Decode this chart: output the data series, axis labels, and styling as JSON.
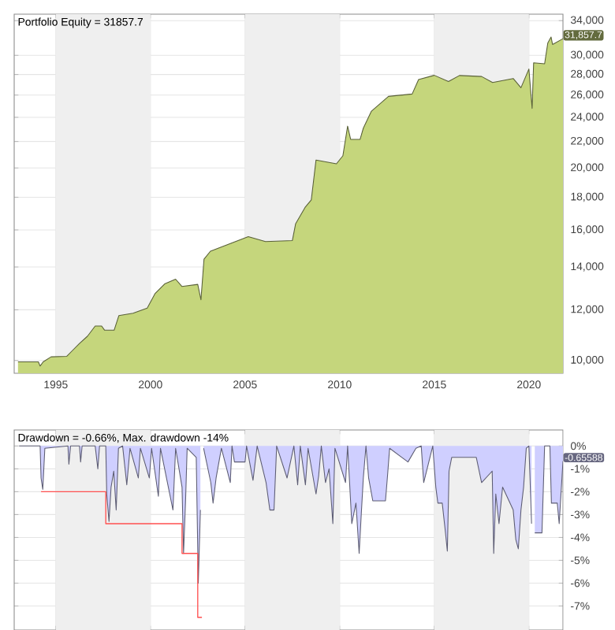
{
  "chart_data": [
    {
      "type": "area",
      "title": "Portfolio Equity = 31857.7",
      "x": [
        1993.0,
        1994.08,
        1994.17,
        1994.33,
        1994.75,
        1995.58,
        1995.83,
        1996.25,
        1996.67,
        1997.08,
        1997.42,
        1997.58,
        1998.08,
        1998.33,
        1999.08,
        1999.83,
        2000.25,
        2000.75,
        2001.33,
        2001.67,
        2002.5,
        2002.67,
        2002.83,
        2003.17,
        2004.25,
        2005.17,
        2006.08,
        2007.5,
        2007.67,
        2008.17,
        2008.5,
        2008.75,
        2009.83,
        2010.17,
        2010.42,
        2010.58,
        2011.08,
        2011.25,
        2011.67,
        2012.58,
        2013.83,
        2014.17,
        2015.0,
        2015.75,
        2016.33,
        2017.5,
        2018.08,
        2019.17,
        2019.58,
        2020.0,
        2020.17,
        2020.25,
        2020.83,
        2021.0,
        2021.17,
        2021.25,
        2021.8
      ],
      "series": [
        {
          "color": "#c5d67c",
          "values": [
            9950,
            9950,
            9800,
            9950,
            10130,
            10150,
            10330,
            10630,
            10910,
            11320,
            11320,
            11150,
            11150,
            11750,
            11850,
            12070,
            12730,
            13170,
            13400,
            13050,
            13150,
            12440,
            14400,
            14820,
            15250,
            15620,
            15340,
            15400,
            16350,
            17350,
            17830,
            20580,
            20300,
            20900,
            23250,
            22170,
            22170,
            23080,
            24520,
            25880,
            26100,
            27490,
            27920,
            27300,
            27900,
            27800,
            27200,
            27600,
            26700,
            28560,
            24780,
            29200,
            29100,
            31380,
            32050,
            31200,
            31857.7
          ]
        }
      ],
      "xlim": [
        1992.8,
        2021.8
      ],
      "ylim": [
        9550,
        34800
      ],
      "xticks": [
        1995,
        2000,
        2005,
        2010,
        2015,
        2020
      ],
      "yticks": [
        {
          "value": 10000,
          "label": "10,000"
        },
        {
          "value": 12000,
          "label": "12,000"
        },
        {
          "value": 14000,
          "label": "14,000"
        },
        {
          "value": 16000,
          "label": "16,000"
        },
        {
          "value": 18000,
          "label": "18,000"
        },
        {
          "value": 20000,
          "label": "20,000"
        },
        {
          "value": 22000,
          "label": "22,000"
        },
        {
          "value": 24000,
          "label": "24,000"
        },
        {
          "value": 26000,
          "label": "26,000"
        },
        {
          "value": 28000,
          "label": "28,000"
        },
        {
          "value": 30000,
          "label": "30,000"
        },
        {
          "value": 34000,
          "label": "34,000"
        }
      ],
      "log": true,
      "grid": true,
      "bands": [
        {
          "axis": "x",
          "from": 1995,
          "to": 2000,
          "color": "#efefef"
        },
        {
          "axis": "x",
          "from": 2005,
          "to": 2010,
          "color": "#efefef"
        },
        {
          "axis": "x",
          "from": 2015,
          "to": 2020,
          "color": "#efefef"
        }
      ],
      "annotations": [
        {
          "text": "31,857.7",
          "x": 2021.8,
          "y": 31857.7
        }
      ]
    },
    {
      "type": "area",
      "title": "Drawdown = -0.66%, Max. drawdown -14%",
      "series": [
        {
          "color": "#cfcfff",
          "x": [
            1993.06,
            1994.17,
            1994.22,
            1994.31,
            1994.42,
            1995.64,
            1995.69,
            1995.78,
            1996.25,
            1996.31,
            1996.39,
            1997.08,
            1997.22,
            1997.31,
            1997.64,
            1997.69,
            1997.81,
            1997.92,
            1998.06,
            1998.19,
            1998.31,
            1998.53,
            1998.75,
            1998.92,
            1999.36,
            1999.47,
            1999.94,
            2000.06,
            2000.42,
            2000.53,
            2001.19,
            2001.33,
            2001.67,
            2001.75,
            2001.86,
            2001.94,
            2002.42,
            2002.53,
            2002.64,
            2002.72,
            2002.81,
            2003.19,
            2003.31,
            2003.47,
            2003.75,
            2004.22,
            2004.31,
            2004.44,
            2005.0,
            2005.08,
            2005.42,
            2005.64,
            2006.11,
            2006.31,
            2006.53,
            2006.67,
            2007.22,
            2007.58,
            2007.78,
            2007.92,
            2008.19,
            2008.33,
            2008.75,
            2008.89,
            2009.03,
            2009.25,
            2009.44,
            2009.64,
            2009.75,
            2010.31,
            2010.42,
            2010.64,
            2010.86,
            2011.03,
            2011.14,
            2011.25,
            2011.39,
            2011.53,
            2011.75,
            2012.42,
            2012.53,
            2012.64,
            2013.61,
            2014.03,
            2014.31,
            2014.44,
            2014.92,
            2015.08,
            2015.19,
            2015.42,
            2015.58,
            2015.69,
            2015.78,
            2015.92,
            2017.22,
            2017.5,
            2018.06,
            2018.14,
            2018.25,
            2018.42,
            2018.61,
            2018.89,
            2019.17,
            2019.31,
            2019.44,
            2019.58,
            2019.72,
            2019.86,
            2020.0,
            2020.14,
            2020.19,
            2020.31,
            2020.69,
            2020.83,
            2021.11,
            2021.19,
            2021.5,
            2021.6,
            2021.8
          ],
          "values": [
            0,
            0,
            -1.4,
            -1.9,
            -0.1,
            0,
            -0.8,
            0,
            0,
            -0.7,
            0,
            0,
            -1.0,
            0,
            0,
            -2.1,
            -3.3,
            -1.8,
            -1.1,
            -2.8,
            -0.1,
            0,
            -1.7,
            -0.1,
            -1.4,
            -0.1,
            -1.4,
            -0.1,
            -2.2,
            -0.1,
            -2.8,
            -0.1,
            -1.8,
            -4.7,
            -2.3,
            -0.1,
            -0.5,
            -6.0,
            -2.8,
            null,
            -0.1,
            -1.6,
            -2.5,
            -1.4,
            -0.1,
            -1.6,
            0,
            -0.7,
            -0.7,
            0,
            -1.5,
            0,
            -1.6,
            -2.8,
            -2.8,
            0,
            -1.4,
            0,
            -1.7,
            0,
            -1.7,
            -0.1,
            -2.1,
            -1.3,
            0,
            -1.6,
            -1.0,
            -3.4,
            -0.1,
            -1.6,
            0,
            -3.4,
            -2.5,
            -4.7,
            -3.0,
            -1.4,
            0,
            -1.4,
            -2.4,
            -2.4,
            -1.3,
            -0.1,
            -0.7,
            -0.1,
            0,
            -1.6,
            0,
            -1.8,
            -2.5,
            -2.5,
            -3.7,
            -4.6,
            -1.1,
            -0.5,
            -0.5,
            -1.6,
            -1.1,
            -4.7,
            -2.1,
            -3.4,
            -1.8,
            -2.3,
            -2.8,
            -4.1,
            -4.5,
            -2.8,
            -1.8,
            -0.1,
            0,
            -3.4,
            null,
            -3.8,
            -3.8,
            0,
            0,
            -2.5,
            -2.5,
            -3.4,
            -0.66
          ]
        },
        {
          "type": "line",
          "color": "#ff5050",
          "x": [
            1994.22,
            1997.64,
            1997.64,
            2001.67,
            2001.67,
            2002.5,
            2002.5,
            2002.72
          ],
          "values": [
            -2.0,
            -2.0,
            -3.4,
            -3.4,
            -4.7,
            -4.7,
            -7.5,
            -7.5
          ]
        }
      ],
      "xlim": [
        1992.8,
        2021.8
      ],
      "ylim": [
        -8.05,
        0.7
      ],
      "xticks": [
        1995,
        2000,
        2005,
        2010,
        2015,
        2020
      ],
      "yticks": [
        {
          "value": 0,
          "label": "0%"
        },
        {
          "value": -1,
          "label": "-1%"
        },
        {
          "value": -2,
          "label": "-2%"
        },
        {
          "value": -3,
          "label": "-3%"
        },
        {
          "value": -4,
          "label": "-4%"
        },
        {
          "value": -5,
          "label": "-5%"
        },
        {
          "value": -6,
          "label": "-6%"
        },
        {
          "value": -7,
          "label": "-7%"
        }
      ],
      "tick_labels": "y",
      "grid": true,
      "bands": [
        {
          "axis": "x",
          "from": 1995,
          "to": 2000,
          "color": "#efefef"
        },
        {
          "axis": "x",
          "from": 2005,
          "to": 2010,
          "color": "#efefef"
        },
        {
          "axis": "x",
          "from": 2015,
          "to": 2020,
          "color": "#efefef"
        }
      ],
      "annotations": [
        {
          "text": "-0.65588",
          "x": 2021.8,
          "y": -0.65588
        }
      ]
    }
  ]
}
